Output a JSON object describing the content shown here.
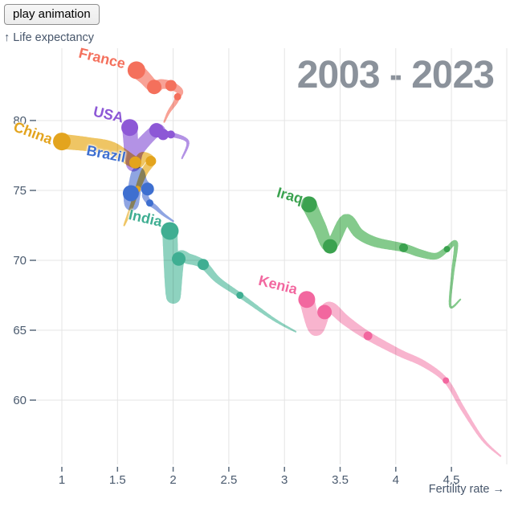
{
  "controls": {
    "play_button_label": "play animation"
  },
  "chart_data": {
    "type": "scatter",
    "subtype": "comet-trail",
    "title": "2003 - 2023",
    "xlabel": "Fertility rate →",
    "ylabel": "↑ Life expectancy",
    "x_ticks": [
      1,
      1.5,
      2,
      2.5,
      3,
      3.5,
      4,
      4.5
    ],
    "y_ticks": [
      80,
      75,
      70,
      65,
      60
    ],
    "xlim": [
      0.78,
      5.0
    ],
    "ylim": [
      55.4,
      85.2
    ],
    "grid": true,
    "year_range": [
      2003,
      2023
    ],
    "colors": {
      "grid": "#e4e4e4",
      "tick_text": "#4a5a6e",
      "tick_mark": "#5b6b7c",
      "title_text": "#8b929b"
    },
    "series": [
      {
        "name": "France",
        "color": "#f4705c",
        "band_color": "#f8a296",
        "label_at": [
          1.36,
          84.4
        ],
        "label_rotation": 14,
        "points": [
          {
            "year": 2003,
            "fertility": 1.92,
            "life_expectancy": 79.9
          },
          {
            "year": 2005,
            "fertility": 1.96,
            "life_expectancy": 80.6
          },
          {
            "year": 2007,
            "fertility": 2.02,
            "life_expectancy": 81.3
          },
          {
            "year": 2008,
            "fertility": 2.04,
            "life_expectancy": 81.7,
            "dot": 4.5
          },
          {
            "year": 2010,
            "fertility": 2.06,
            "life_expectancy": 82.1
          },
          {
            "year": 2013,
            "fertility": 1.98,
            "life_expectancy": 82.5,
            "dot": 7
          },
          {
            "year": 2015,
            "fertility": 1.89,
            "life_expectancy": 82.6
          },
          {
            "year": 2018,
            "fertility": 1.83,
            "life_expectancy": 82.4,
            "dot": 9
          },
          {
            "year": 2020,
            "fertility": 1.74,
            "life_expectancy": 83.1
          },
          {
            "year": 2023,
            "fertility": 1.67,
            "life_expectancy": 83.6,
            "dot": 11
          }
        ]
      },
      {
        "name": "USA",
        "color": "#8d58d6",
        "band_color": "#b392e5",
        "label_at": [
          1.42,
          80.4
        ],
        "label_rotation": 13,
        "points": [
          {
            "year": 2003,
            "fertility": 2.08,
            "life_expectancy": 77.3
          },
          {
            "year": 2005,
            "fertility": 2.13,
            "life_expectancy": 78.5
          },
          {
            "year": 2008,
            "fertility": 1.98,
            "life_expectancy": 79.0,
            "dot": 5
          },
          {
            "year": 2013,
            "fertility": 1.91,
            "life_expectancy": 79.0,
            "dot": 7
          },
          {
            "year": 2018,
            "fertility": 1.85,
            "life_expectancy": 79.3,
            "dot": 9
          },
          {
            "year": 2020,
            "fertility": 1.68,
            "life_expectancy": 77.9
          },
          {
            "year": 2021,
            "fertility": 1.64,
            "life_expectancy": 76.9
          },
          {
            "year": 2023,
            "fertility": 1.61,
            "life_expectancy": 79.5,
            "dot": 10.5
          }
        ]
      },
      {
        "name": "China",
        "color": "#e3a41e",
        "band_color": "#efc564",
        "label_at": [
          0.74,
          79.1
        ],
        "label_rotation": 20,
        "points": [
          {
            "year": 2003,
            "fertility": 1.56,
            "life_expectancy": 72.5
          },
          {
            "year": 2006,
            "fertility": 1.62,
            "life_expectancy": 73.7
          },
          {
            "year": 2008,
            "fertility": 1.68,
            "life_expectancy": 75.1,
            "dot": 4
          },
          {
            "year": 2011,
            "fertility": 1.74,
            "life_expectancy": 76.3
          },
          {
            "year": 2013,
            "fertility": 1.8,
            "life_expectancy": 77.1,
            "dot": 6.5
          },
          {
            "year": 2015,
            "fertility": 1.73,
            "life_expectancy": 77.4
          },
          {
            "year": 2018,
            "fertility": 1.66,
            "life_expectancy": 77.0,
            "dot": 7.5
          },
          {
            "year": 2020,
            "fertility": 1.45,
            "life_expectancy": 78.0
          },
          {
            "year": 2021,
            "fertility": 1.24,
            "life_expectancy": 78.3
          },
          {
            "year": 2023,
            "fertility": 1.0,
            "life_expectancy": 78.5,
            "dot": 11
          }
        ]
      },
      {
        "name": "Brazil",
        "color": "#3e6fd0",
        "band_color": "#8fa5e2",
        "label_at": [
          1.4,
          77.6
        ],
        "label_rotation": 11,
        "points": [
          {
            "year": 2003,
            "fertility": 2.0,
            "life_expectancy": 72.8
          },
          {
            "year": 2005,
            "fertility": 1.91,
            "life_expectancy": 73.3
          },
          {
            "year": 2007,
            "fertility": 1.84,
            "life_expectancy": 73.8
          },
          {
            "year": 2008,
            "fertility": 1.79,
            "life_expectancy": 74.1,
            "dot": 4.5
          },
          {
            "year": 2010,
            "fertility": 1.75,
            "life_expectancy": 74.6
          },
          {
            "year": 2013,
            "fertility": 1.77,
            "life_expectancy": 75.1,
            "dot": 8
          },
          {
            "year": 2016,
            "fertility": 1.72,
            "life_expectancy": 75.6
          },
          {
            "year": 2019,
            "fertility": 1.68,
            "life_expectancy": 76.2
          },
          {
            "year": 2021,
            "fertility": 1.63,
            "life_expectancy": 74.1
          },
          {
            "year": 2023,
            "fertility": 1.62,
            "life_expectancy": 74.8,
            "dot": 10
          }
        ]
      },
      {
        "name": "India",
        "color": "#3fae92",
        "band_color": "#8ed2bf",
        "label_at": [
          1.75,
          73.0
        ],
        "label_rotation": 13,
        "points": [
          {
            "year": 2003,
            "fertility": 3.1,
            "life_expectancy": 64.9
          },
          {
            "year": 2005,
            "fertility": 2.9,
            "life_expectancy": 65.8
          },
          {
            "year": 2008,
            "fertility": 2.6,
            "life_expectancy": 67.5,
            "dot": 4.5
          },
          {
            "year": 2010,
            "fertility": 2.4,
            "life_expectancy": 68.6
          },
          {
            "year": 2013,
            "fertility": 2.27,
            "life_expectancy": 69.7,
            "dot": 7
          },
          {
            "year": 2016,
            "fertility": 2.14,
            "life_expectancy": 70.1
          },
          {
            "year": 2018,
            "fertility": 2.05,
            "life_expectancy": 70.1,
            "dot": 8.5
          },
          {
            "year": 2021,
            "fertility": 2.0,
            "life_expectancy": 67.4
          },
          {
            "year": 2023,
            "fertility": 1.97,
            "life_expectancy": 72.1,
            "dot": 11
          }
        ]
      },
      {
        "name": "Iraq",
        "color": "#3ba24f",
        "band_color": "#84ca8c",
        "label_at": [
          3.05,
          74.6
        ],
        "label_rotation": 16,
        "points": [
          {
            "year": 2003,
            "fertility": 4.58,
            "life_expectancy": 67.2
          },
          {
            "year": 2004,
            "fertility": 4.49,
            "life_expectancy": 66.7
          },
          {
            "year": 2005,
            "fertility": 4.51,
            "life_expectancy": 69.0
          },
          {
            "year": 2007,
            "fertility": 4.54,
            "life_expectancy": 71.2
          },
          {
            "year": 2008,
            "fertility": 4.46,
            "life_expectancy": 70.8,
            "dot": 4
          },
          {
            "year": 2010,
            "fertility": 4.36,
            "life_expectancy": 70.3
          },
          {
            "year": 2012,
            "fertility": 4.22,
            "life_expectancy": 70.5
          },
          {
            "year": 2013,
            "fertility": 4.07,
            "life_expectancy": 70.9,
            "dot": 5.5
          },
          {
            "year": 2015,
            "fertility": 3.82,
            "life_expectancy": 71.3
          },
          {
            "year": 2016,
            "fertility": 3.67,
            "life_expectancy": 71.9
          },
          {
            "year": 2017,
            "fertility": 3.55,
            "life_expectancy": 72.9
          },
          {
            "year": 2018,
            "fertility": 3.41,
            "life_expectancy": 71.0,
            "dot": 9
          },
          {
            "year": 2020,
            "fertility": 3.31,
            "life_expectancy": 72.5
          },
          {
            "year": 2023,
            "fertility": 3.22,
            "life_expectancy": 74.0,
            "dot": 10
          }
        ]
      },
      {
        "name": "Kenia",
        "color": "#f2679f",
        "band_color": "#f8b4ce",
        "label_at": [
          2.94,
          68.2
        ],
        "label_rotation": 14,
        "points": [
          {
            "year": 2003,
            "fertility": 4.94,
            "life_expectancy": 56.0
          },
          {
            "year": 2005,
            "fertility": 4.78,
            "life_expectancy": 57.2
          },
          {
            "year": 2007,
            "fertility": 4.6,
            "life_expectancy": 59.4
          },
          {
            "year": 2008,
            "fertility": 4.45,
            "life_expectancy": 61.4,
            "dot": 4
          },
          {
            "year": 2010,
            "fertility": 4.25,
            "life_expectancy": 62.6
          },
          {
            "year": 2011,
            "fertility": 4.03,
            "life_expectancy": 63.4
          },
          {
            "year": 2013,
            "fertility": 3.75,
            "life_expectancy": 64.6,
            "dot": 5.5
          },
          {
            "year": 2015,
            "fertility": 3.55,
            "life_expectancy": 65.7
          },
          {
            "year": 2017,
            "fertility": 3.42,
            "life_expectancy": 66.6
          },
          {
            "year": 2018,
            "fertility": 3.36,
            "life_expectancy": 66.3,
            "dot": 9
          },
          {
            "year": 2021,
            "fertility": 3.28,
            "life_expectancy": 65.1
          },
          {
            "year": 2023,
            "fertility": 3.2,
            "life_expectancy": 67.2,
            "dot": 10.5
          }
        ]
      }
    ]
  }
}
